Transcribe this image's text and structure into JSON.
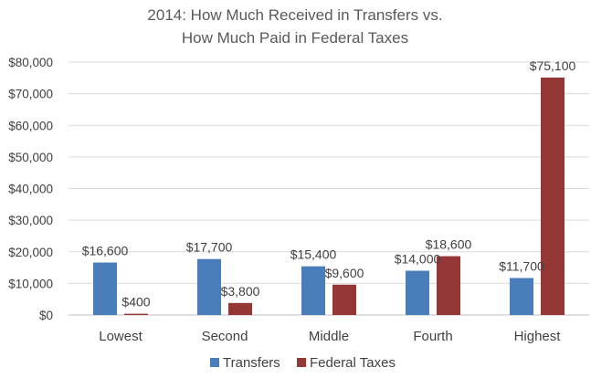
{
  "chart_data": {
    "type": "bar",
    "title_lines": [
      "2014: How Much Received in Transfers vs.",
      "How Much Paid in Federal Taxes"
    ],
    "categories": [
      "Lowest",
      "Second",
      "Middle",
      "Fourth",
      "Highest"
    ],
    "series": [
      {
        "name": "Transfers",
        "color": "#4a7ebb",
        "values": [
          16600,
          17700,
          15400,
          14000,
          11700
        ],
        "labels": [
          "$16,600",
          "$17,700",
          "$15,400",
          "$14,000",
          "$11,700"
        ]
      },
      {
        "name": "Federal Taxes",
        "color": "#953735",
        "values": [
          400,
          3800,
          9600,
          18600,
          75100
        ],
        "labels": [
          "$400",
          "$3,800",
          "$9,600",
          "$18,600",
          "$75,100"
        ]
      }
    ],
    "ylim": [
      0,
      80000
    ],
    "yticks": [
      0,
      10000,
      20000,
      30000,
      40000,
      50000,
      60000,
      70000,
      80000
    ],
    "ytick_labels": [
      "$0",
      "$10,000",
      "$20,000",
      "$30,000",
      "$40,000",
      "$50,000",
      "$60,000",
      "$70,000",
      "$80,000"
    ],
    "grid": true,
    "legend_position": "bottom"
  }
}
